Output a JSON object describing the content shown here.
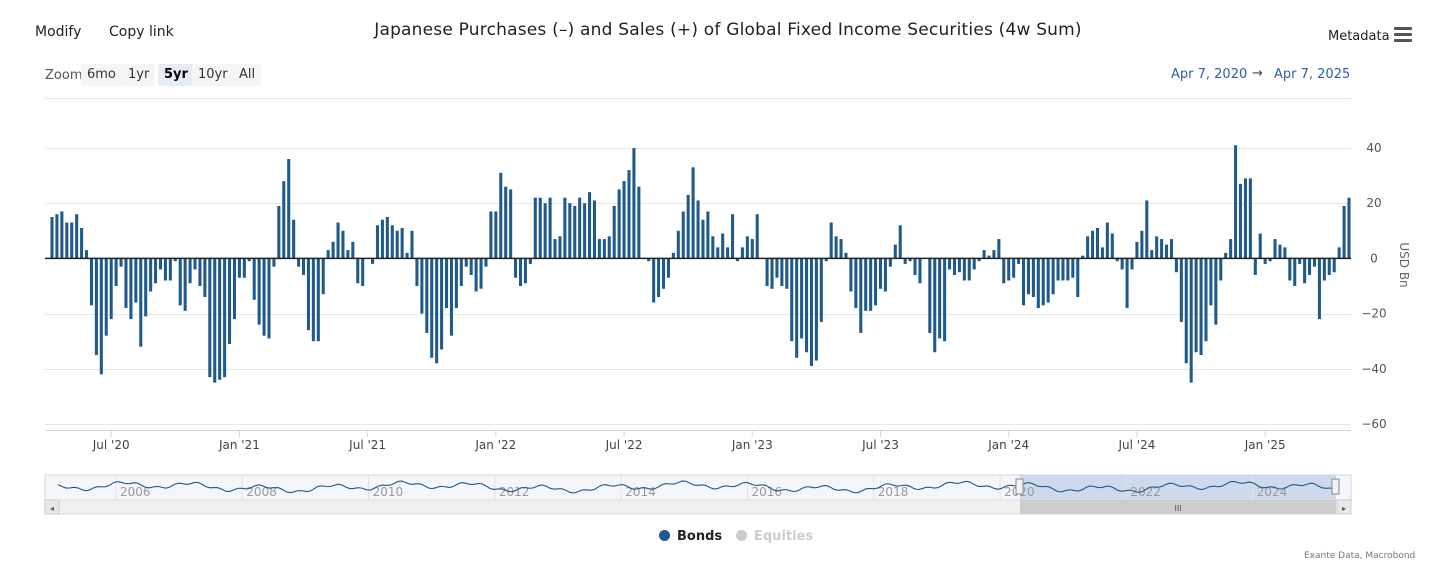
{
  "toolbar": {
    "modify_label": "Modify",
    "copy_link_label": "Copy link",
    "metadata_label": "Metadata",
    "menu_icon": "hamburger-menu-icon"
  },
  "range_selector": {
    "zoom_label": "Zoom",
    "buttons": [
      "6mo",
      "1yr",
      "5yr",
      "10yr",
      "All"
    ],
    "active": "5yr",
    "from": "Apr 7, 2020",
    "arrow": "→",
    "to": "Apr 7, 2025"
  },
  "navigator": {
    "year_labels": [
      "2006",
      "2008",
      "2010",
      "2012",
      "2014",
      "2016",
      "2018",
      "2020",
      "2022",
      "2024"
    ],
    "scroll_grip": "III"
  },
  "legend": {
    "items": [
      {
        "name": "Bonds",
        "color": "#1f5a8a",
        "visible": true
      },
      {
        "name": "Equities",
        "color": "#cccccc",
        "visible": false
      }
    ]
  },
  "credits": "Exante Data, Macrobond",
  "chart_data": {
    "type": "bar",
    "title": "Japanese Purchases (–) and Sales (+) of Global Fixed Income Securities (4w Sum)",
    "xlabel": "",
    "ylabel": "USD Bn",
    "ylim": [
      -60,
      40
    ],
    "yticks": [
      40,
      20,
      0,
      -20,
      -40,
      -60
    ],
    "x_tick_labels": [
      "Jul '20",
      "Jan '21",
      "Jul '21",
      "Jan '22",
      "Jul '22",
      "Jan '23",
      "Jul '23",
      "Jan '24",
      "Jul '24",
      "Jan '25"
    ],
    "x_tick_index": [
      12,
      38,
      64,
      90,
      116,
      142,
      168,
      194,
      220,
      246
    ],
    "grid": true,
    "series": [
      {
        "name": "Bonds",
        "color": "#1f5a8a",
        "values": [
          15,
          16,
          17,
          13,
          13,
          16,
          11,
          3,
          -17,
          -35,
          -42,
          -28,
          -22,
          -10,
          -3,
          -18,
          -22,
          -16,
          -32,
          -21,
          -12,
          -9,
          -4,
          -8,
          -8,
          -1,
          -17,
          -19,
          -9,
          -4,
          -10,
          -14,
          -43,
          -45,
          -44,
          -43,
          -31,
          -22,
          -7,
          -7,
          -1,
          -15,
          -24,
          -28,
          -29,
          -3,
          19,
          28,
          36,
          14,
          -3,
          -6,
          -26,
          -30,
          -30,
          -13,
          3,
          6,
          13,
          10,
          3,
          6,
          -9,
          -10,
          0,
          -2,
          12,
          14,
          15,
          12,
          10,
          11,
          2,
          10,
          -10,
          -20,
          -27,
          -36,
          -38,
          -33,
          -18,
          -28,
          -18,
          -10,
          -3,
          -6,
          -12,
          -11,
          -3,
          17,
          17,
          31,
          26,
          25,
          -7,
          -10,
          -9,
          -2,
          22,
          22,
          20,
          22,
          7,
          8,
          22,
          20,
          19,
          22,
          20,
          24,
          21,
          7,
          7,
          8,
          19,
          25,
          28,
          32,
          40,
          26,
          0,
          -1,
          -16,
          -14,
          -11,
          -7,
          2,
          10,
          17,
          23,
          33,
          21,
          14,
          17,
          8,
          4,
          9,
          4,
          16,
          -1,
          4,
          8,
          7,
          16,
          0,
          -10,
          -11,
          -7,
          -10,
          -11,
          -30,
          -36,
          -29,
          -34,
          -39,
          -37,
          -23,
          -1,
          13,
          8,
          7,
          2,
          -12,
          -18,
          -27,
          -19,
          -19,
          -17,
          -11,
          -12,
          -3,
          5,
          12,
          -2,
          -1,
          -6,
          -9,
          0,
          -27,
          -34,
          -29,
          -30,
          -4,
          -6,
          -5,
          -8,
          -8,
          -4,
          -1,
          3,
          1,
          3,
          7,
          -9,
          -8,
          -7,
          -2,
          -17,
          -13,
          -14,
          -18,
          -17,
          -16,
          -13,
          -8,
          -8,
          -8,
          -7,
          -14,
          1,
          8,
          10,
          11,
          4,
          13,
          9,
          -1,
          -4,
          -18,
          -4,
          6,
          10,
          21,
          3,
          8,
          7,
          5,
          7,
          -5,
          -23,
          -38,
          -45,
          -34,
          -35,
          -30,
          -17,
          -24,
          -8,
          2,
          7,
          41,
          27,
          29,
          29,
          -6,
          9,
          -2,
          -1,
          7,
          5,
          4,
          -8,
          -10,
          -2,
          -9,
          -6,
          -3,
          -22,
          -8,
          -6,
          -5,
          4,
          19,
          22
        ]
      },
      {
        "name": "Equities",
        "visible": false,
        "values": []
      }
    ]
  }
}
